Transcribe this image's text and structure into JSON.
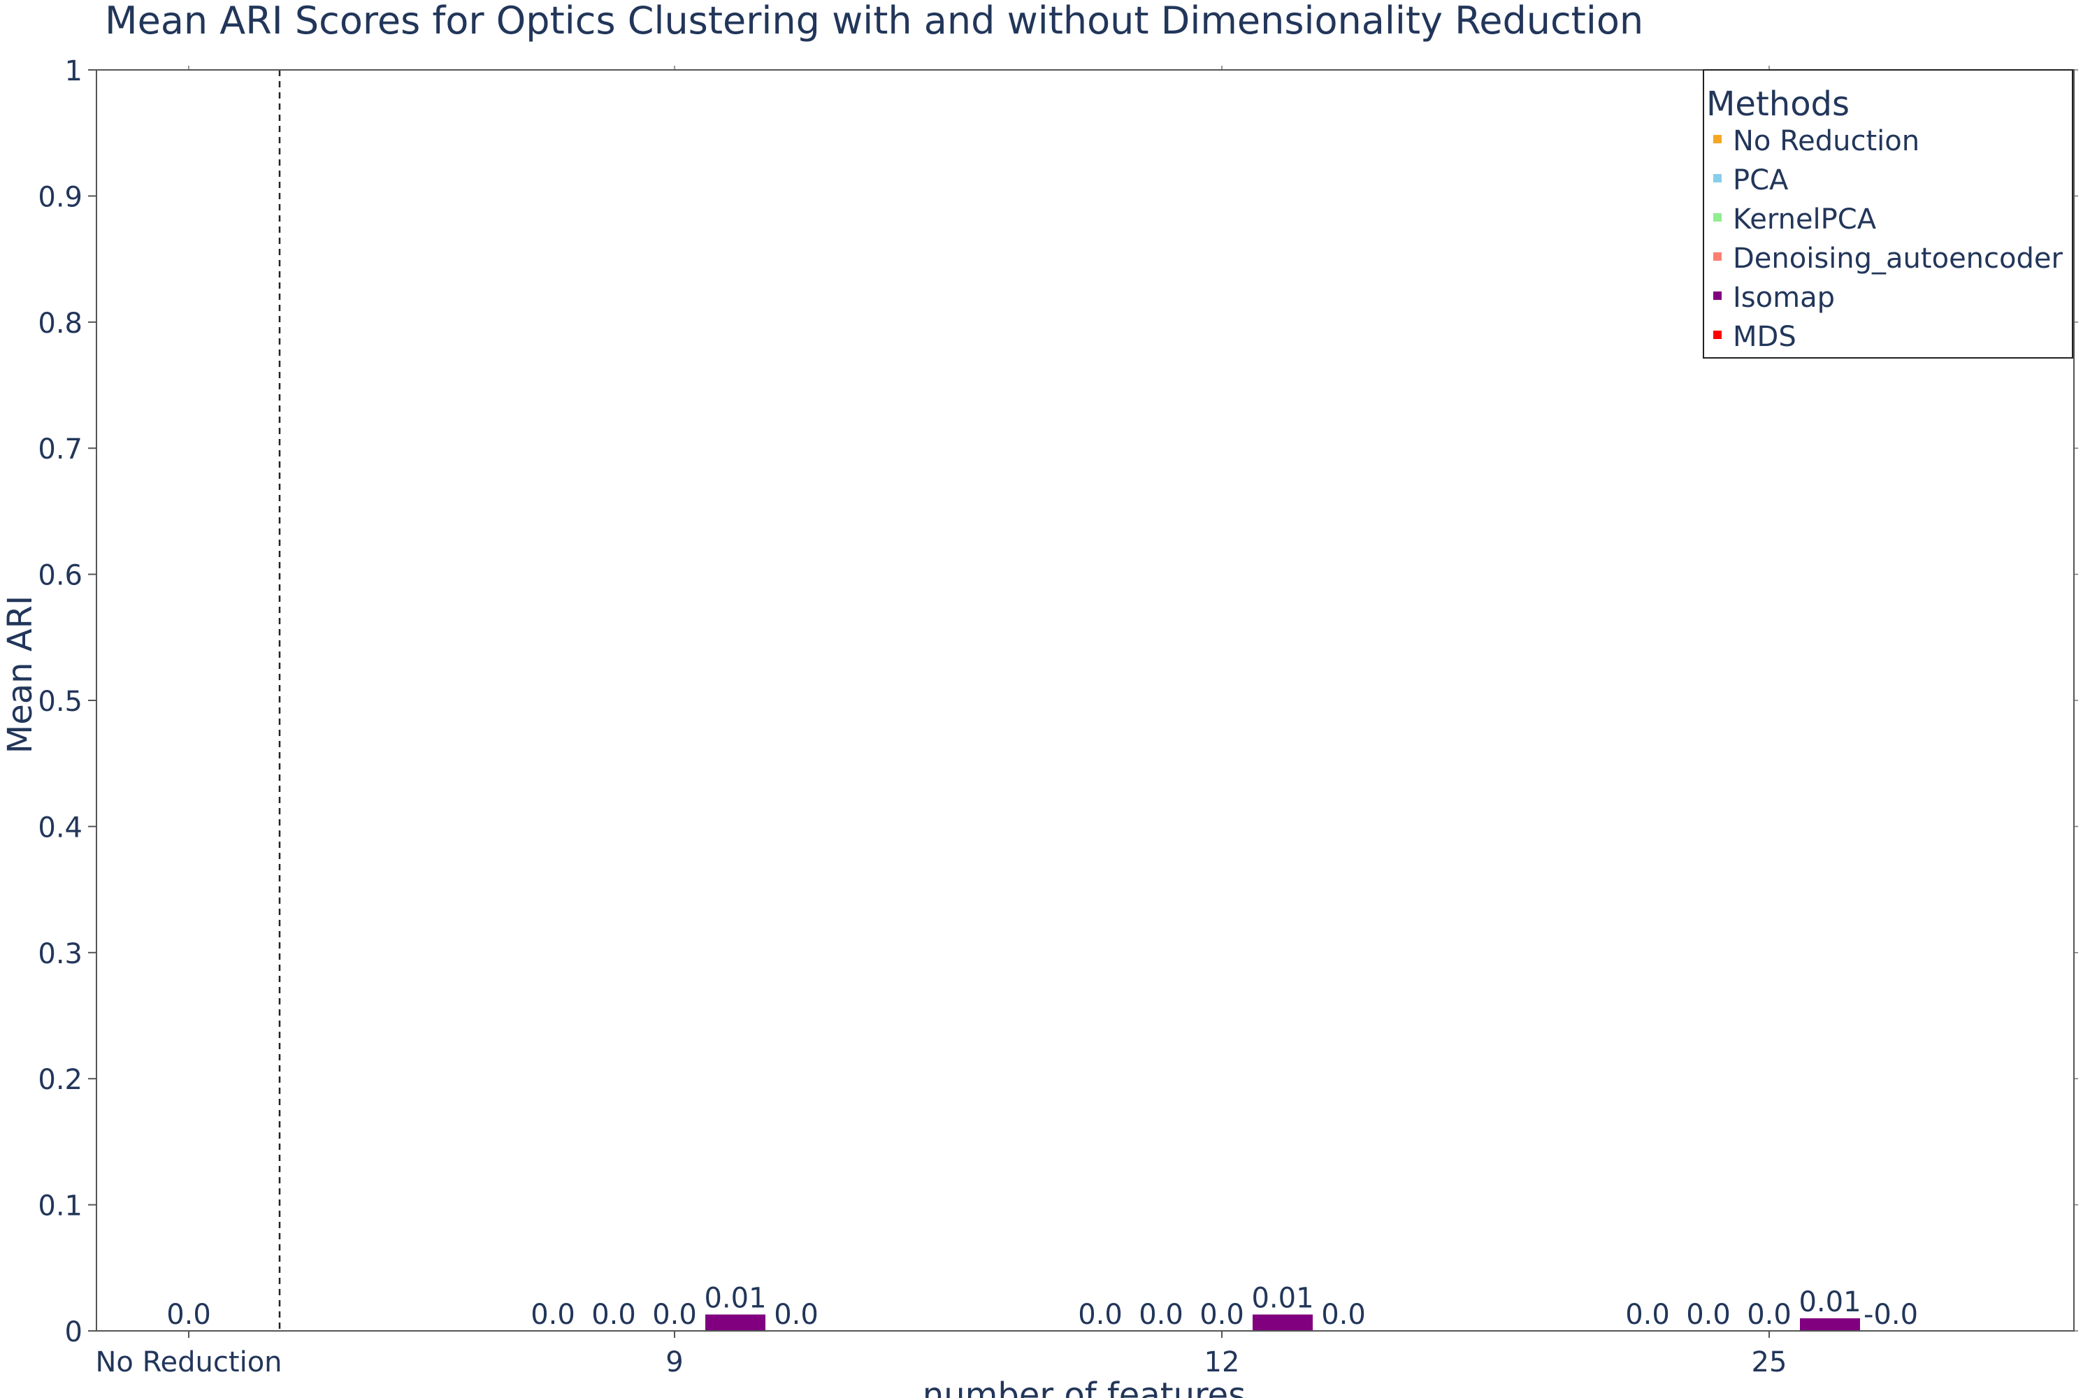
{
  "chart_data": {
    "type": "bar",
    "title": "Mean ARI Scores for Optics Clustering with and without Dimensionality Reduction",
    "xlabel": "number of features",
    "ylabel": "Mean ARI",
    "ylim": [
      0,
      1
    ],
    "yticks": [
      "0",
      "0.1",
      "0.2",
      "0.3",
      "0.4",
      "0.5",
      "0.6",
      "0.7",
      "0.8",
      "0.9",
      "1"
    ],
    "categories": [
      "No Reduction",
      "9",
      "12",
      "25"
    ],
    "grid": false,
    "legend": {
      "title": "Methods",
      "placement": "top-right",
      "entries": [
        {
          "name": "No Reduction",
          "color": "#f5a623"
        },
        {
          "name": "PCA",
          "color": "#87ceeb"
        },
        {
          "name": "KernelPCA",
          "color": "#90ee90"
        },
        {
          "name": "Denoising_autoencoder",
          "color": "#fa8072"
        },
        {
          "name": "Isomap",
          "color": "#800080"
        },
        {
          "name": "MDS",
          "color": "#ff0000"
        }
      ]
    },
    "baseline": {
      "category": "No Reduction",
      "method": "No Reduction",
      "value": 0.0,
      "label": "0.0"
    },
    "series": [
      {
        "name": "PCA",
        "color": "#87ceeb",
        "values": [
          null,
          0.0,
          0.0,
          0.0
        ],
        "labels": [
          null,
          "0.0",
          "0.0",
          "0.0"
        ]
      },
      {
        "name": "KernelPCA",
        "color": "#90ee90",
        "values": [
          null,
          0.0,
          0.0,
          0.0
        ],
        "labels": [
          null,
          "0.0",
          "0.0",
          "0.0"
        ]
      },
      {
        "name": "Denoising_autoencoder",
        "color": "#fa8072",
        "values": [
          null,
          0.0,
          0.0,
          0.0
        ],
        "labels": [
          null,
          "0.0",
          "0.0",
          "0.0"
        ]
      },
      {
        "name": "Isomap",
        "color": "#800080",
        "values": [
          null,
          0.013,
          0.013,
          0.01
        ],
        "labels": [
          null,
          "0.01",
          "0.01",
          "0.01"
        ]
      },
      {
        "name": "MDS",
        "color": "#ff0000",
        "values": [
          null,
          0.0,
          0.0,
          -0.0
        ],
        "labels": [
          null,
          "0.0",
          "0.0",
          "-0.0"
        ]
      }
    ],
    "separator": {
      "style": "dashed",
      "after_category": "No Reduction"
    }
  }
}
